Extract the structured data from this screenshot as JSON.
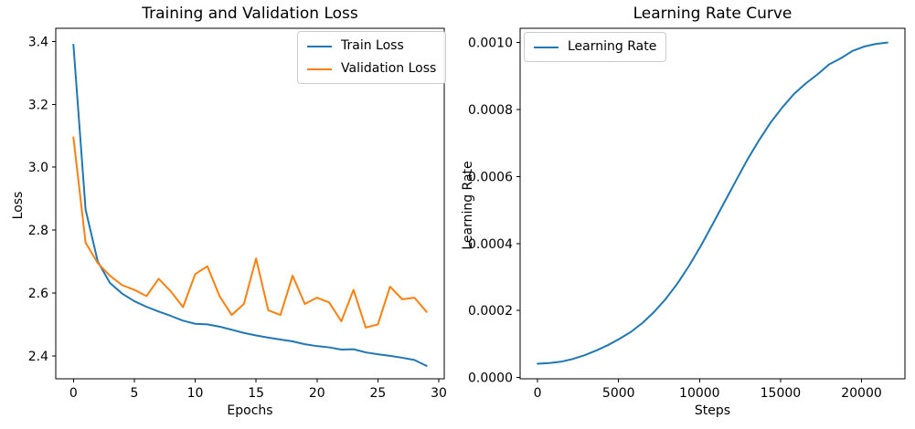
{
  "figure": {
    "background": "#ffffff"
  },
  "chart_data": [
    {
      "type": "line",
      "title": "Training and Validation Loss",
      "xlabel": "Epochs",
      "ylabel": "Loss",
      "x": [
        0,
        1,
        2,
        3,
        4,
        5,
        6,
        7,
        8,
        9,
        10,
        11,
        12,
        13,
        14,
        15,
        16,
        17,
        18,
        19,
        20,
        21,
        22,
        23,
        24,
        25,
        26,
        27,
        28,
        29
      ],
      "series": [
        {
          "name": "Train Loss",
          "color": "#1f77b4",
          "values": [
            3.39,
            2.865,
            2.7,
            2.632,
            2.598,
            2.574,
            2.556,
            2.541,
            2.527,
            2.512,
            2.502,
            2.5,
            2.493,
            2.483,
            2.473,
            2.465,
            2.458,
            2.452,
            2.446,
            2.437,
            2.431,
            2.427,
            2.42,
            2.421,
            2.411,
            2.405,
            2.4,
            2.394,
            2.387,
            2.368
          ]
        },
        {
          "name": "Validation Loss",
          "color": "#ff7f0e",
          "values": [
            3.095,
            2.76,
            2.695,
            2.655,
            2.625,
            2.61,
            2.59,
            2.645,
            2.605,
            2.555,
            2.66,
            2.685,
            2.59,
            2.53,
            2.565,
            2.71,
            2.545,
            2.53,
            2.655,
            2.565,
            2.585,
            2.57,
            2.51,
            2.61,
            2.49,
            2.5,
            2.62,
            2.58,
            2.585,
            2.54
          ]
        }
      ],
      "xlim": [
        -1.45,
        30.45
      ],
      "ylim": [
        2.327,
        3.442
      ],
      "xticks": {
        "values": [
          0,
          5,
          10,
          15,
          20,
          25,
          30
        ],
        "labels": [
          "0",
          "5",
          "10",
          "15",
          "20",
          "25",
          "30"
        ]
      },
      "yticks": {
        "values": [
          2.4,
          2.6,
          2.8,
          3.0,
          3.2,
          3.4
        ],
        "labels": [
          "2.4",
          "2.6",
          "2.8",
          "3.0",
          "3.2",
          "3.4"
        ]
      },
      "grid": false,
      "legend_position": "top-right"
    },
    {
      "type": "line",
      "title": "Learning Rate Curve",
      "xlabel": "Steps",
      "ylabel": "Learning Rate",
      "x": [
        0,
        720,
        1440,
        2160,
        2880,
        3600,
        4320,
        5040,
        5760,
        6480,
        7200,
        7920,
        8640,
        9360,
        10080,
        10800,
        11520,
        12240,
        12960,
        13680,
        14400,
        15120,
        15840,
        16560,
        17280,
        18000,
        18720,
        19440,
        20160,
        20880,
        21600
      ],
      "series": [
        {
          "name": "Learning Rate",
          "color": "#1f77b4",
          "values": [
            4.1e-05,
            4.3e-05,
            4.7e-05,
            5.5e-05,
            6.6e-05,
            8e-05,
            9.6e-05,
            0.000115,
            0.000136,
            0.000163,
            0.000196,
            0.000235,
            0.000281,
            0.000334,
            0.000393,
            0.000457,
            0.000522,
            0.000587,
            0.000651,
            0.000709,
            0.000762,
            0.000807,
            0.000847,
            0.000878,
            0.000905,
            0.000935,
            0.000953,
            0.000975,
            0.000988,
            0.000996,
            0.001
          ]
        }
      ],
      "xlim": [
        -1080,
        22680
      ],
      "ylim": [
        -4e-06,
        0.0010426
      ],
      "xticks": {
        "values": [
          0,
          5000,
          10000,
          15000,
          20000
        ],
        "labels": [
          "0",
          "5000",
          "10000",
          "15000",
          "20000"
        ]
      },
      "yticks": {
        "values": [
          0.0,
          0.0002,
          0.0004,
          0.0006,
          0.0008,
          0.001
        ],
        "labels": [
          "0.0000",
          "0.0002",
          "0.0004",
          "0.0006",
          "0.0008",
          "0.0010"
        ]
      },
      "grid": false,
      "legend_position": "top-left"
    }
  ]
}
